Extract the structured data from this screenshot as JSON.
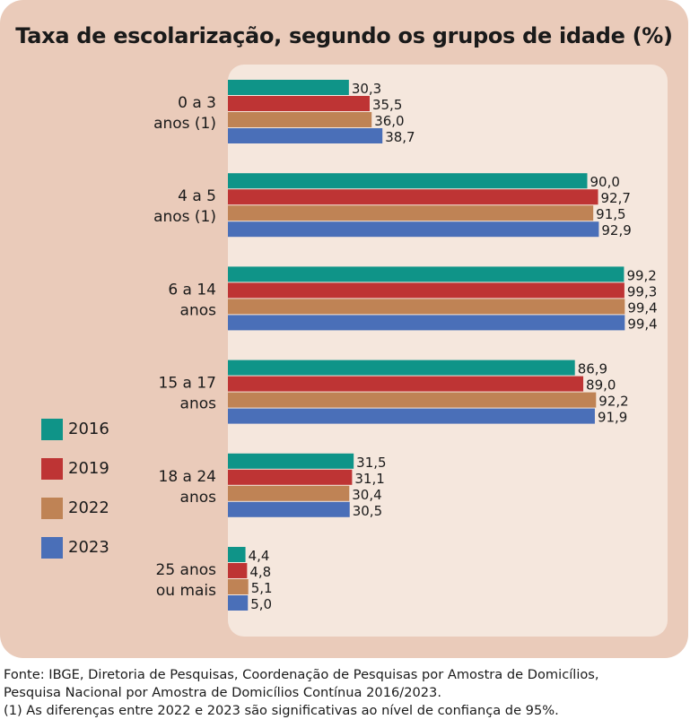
{
  "chart_data": {
    "type": "bar",
    "orientation": "horizontal",
    "title": "Taxa de escolarização, segundo os grupos de idade (%)",
    "categories": [
      [
        "0 a 3",
        "anos (1)"
      ],
      [
        "4 a 5",
        "anos (1)"
      ],
      [
        "6 a 14",
        "anos"
      ],
      [
        "15 a 17",
        "anos"
      ],
      [
        "18 a 24",
        "anos"
      ],
      [
        "25 anos",
        "ou mais"
      ]
    ],
    "series": [
      {
        "name": "2016",
        "color": "#0f9488",
        "values": [
          30.3,
          90.0,
          99.2,
          86.9,
          31.5,
          4.4
        ],
        "labels": [
          "30,3",
          "90,0",
          "99,2",
          "86,9",
          "31,5",
          "4,4"
        ]
      },
      {
        "name": "2019",
        "color": "#be3434",
        "values": [
          35.5,
          92.7,
          99.3,
          89.0,
          31.1,
          4.8
        ],
        "labels": [
          "35,5",
          "92,7",
          "99,3",
          "89,0",
          "31,1",
          "4,8"
        ]
      },
      {
        "name": "2022",
        "color": "#bf8355",
        "values": [
          36.0,
          91.5,
          99.4,
          92.2,
          30.4,
          5.1
        ],
        "labels": [
          "36,0",
          "91,5",
          "99,4",
          "92,2",
          "30,4",
          "5,1"
        ]
      },
      {
        "name": "2023",
        "color": "#4a6fb8",
        "values": [
          38.7,
          92.9,
          99.4,
          91.9,
          30.5,
          5.0
        ],
        "labels": [
          "38,7",
          "92,9",
          "99,4",
          "91,9",
          "30,5",
          "5,0"
        ]
      }
    ],
    "xlim": [
      0,
      100
    ],
    "legend_position": "bottom-left",
    "grid": false
  },
  "footer": {
    "source_line1": "Fonte: IBGE, Diretoria de Pesquisas, Coordenação de Pesquisas por Amostra de Domicílios,",
    "source_line2": "Pesquisa Nacional por Amostra de Domicílios Contínua 2016/2023.",
    "note": "(1) As diferenças entre 2022 e 2023 são significativas ao nível de confiança de 95%."
  }
}
